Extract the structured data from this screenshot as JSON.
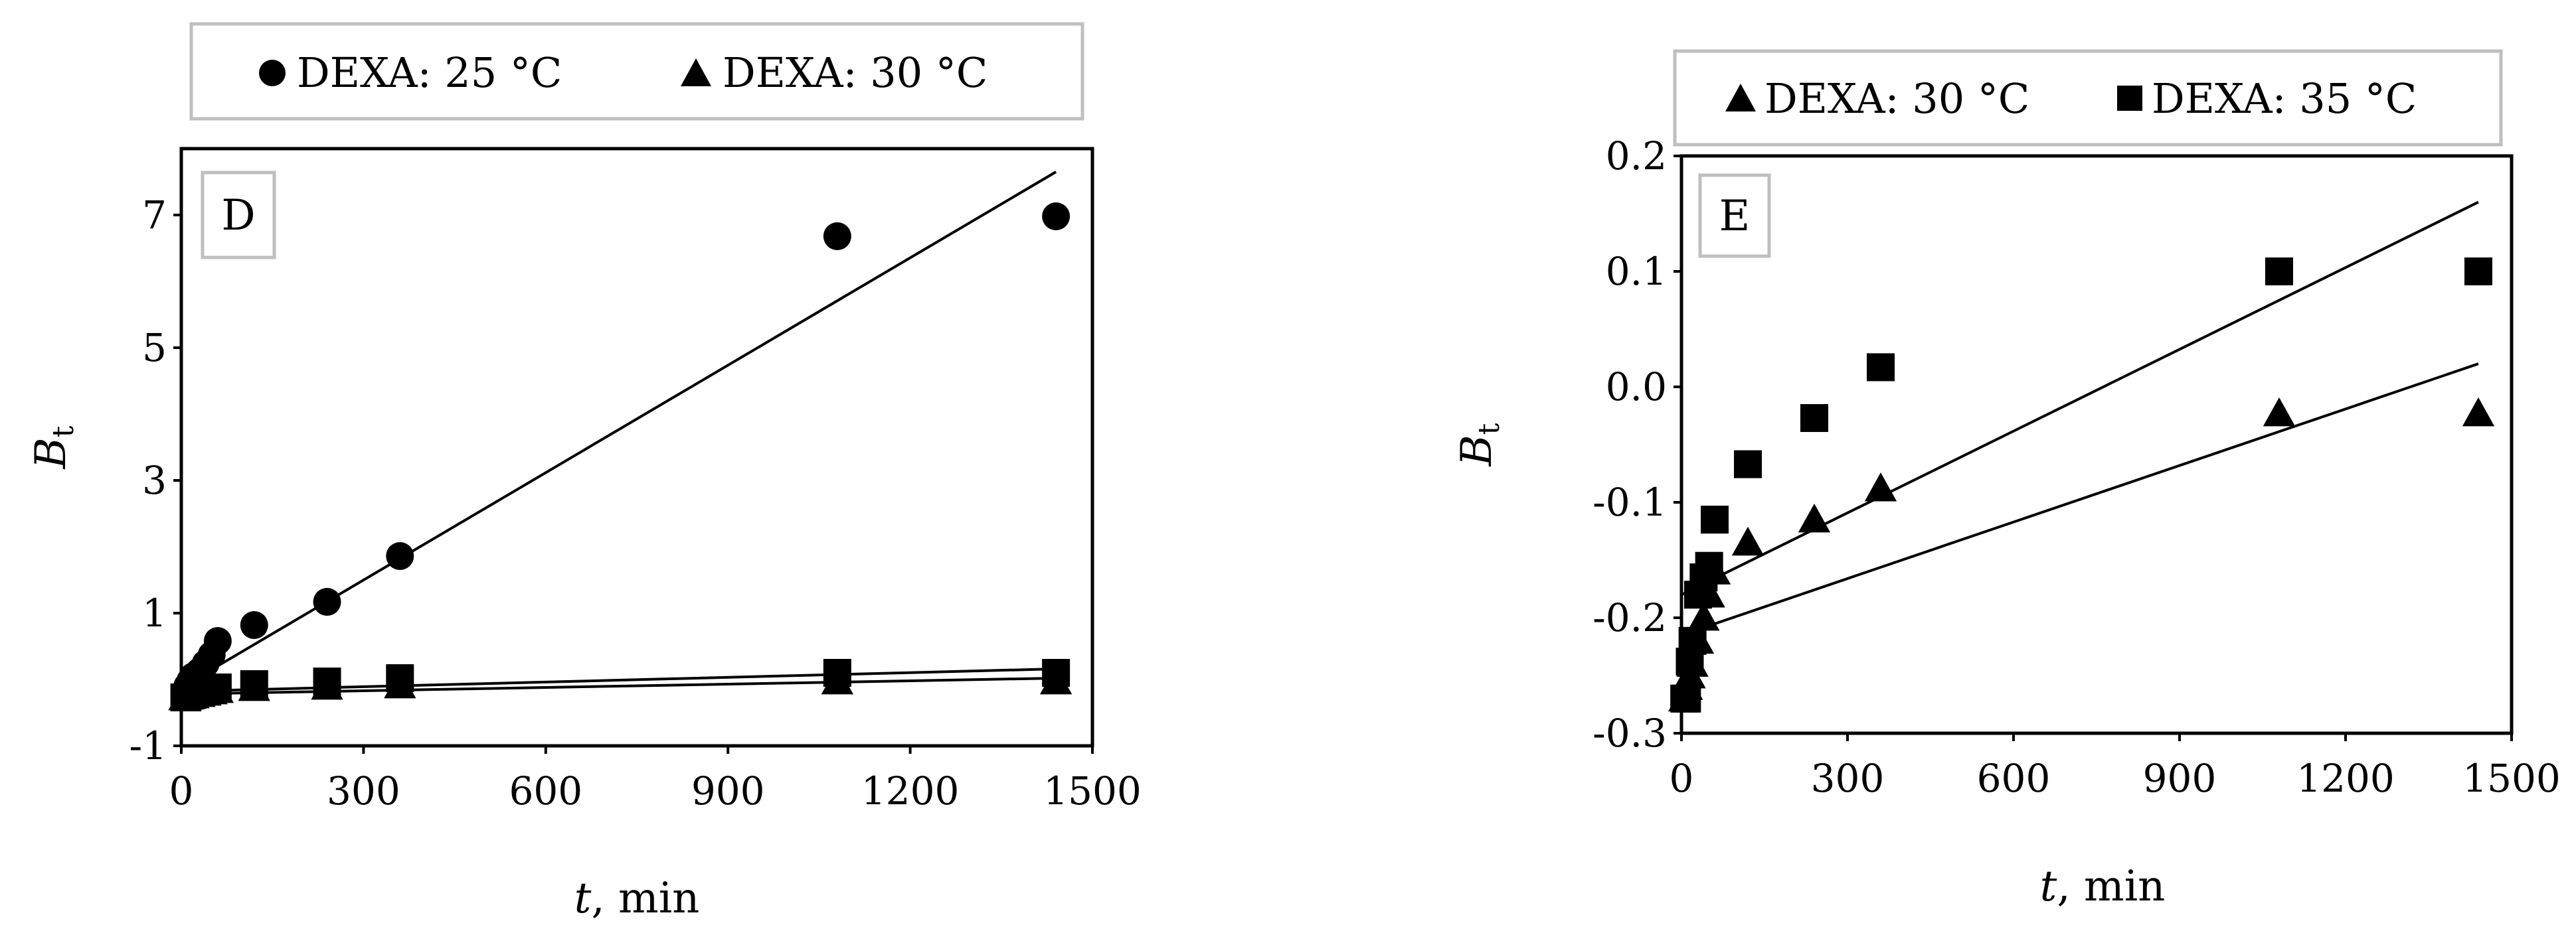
{
  "chart_data": [
    {
      "type": "scatter",
      "panel_label": "D",
      "xlabel_var": "t",
      "xlabel_unit": ", min",
      "ylabel_var": "B",
      "ylabel_sub": "t",
      "xlim": [
        0,
        1500
      ],
      "ylim": [
        -1,
        8
      ],
      "xticks": [
        0,
        300,
        600,
        900,
        1200,
        1500
      ],
      "yticks": [
        -1,
        1,
        3,
        5,
        7
      ],
      "grid": false,
      "legend_position": "top",
      "series": [
        {
          "name": "DEXA: 25 °C",
          "marker": "circle",
          "points": [
            [
              5,
              -0.19
            ],
            [
              10,
              -0.1
            ],
            [
              15,
              -0.02
            ],
            [
              20,
              0.05
            ],
            [
              30,
              0.12
            ],
            [
              40,
              0.24
            ],
            [
              50,
              0.37
            ],
            [
              60,
              0.58
            ],
            [
              120,
              0.82
            ],
            [
              240,
              1.17
            ],
            [
              360,
              1.86
            ],
            [
              1080,
              6.68
            ],
            [
              1440,
              6.98
            ]
          ],
          "trendline": [
            [
              0,
              -0.12
            ],
            [
              1440,
              7.65
            ]
          ]
        },
        {
          "name": "DEXA: 30 °C",
          "marker": "triangle",
          "points": [
            [
              5,
              -0.27
            ],
            [
              10,
              -0.26
            ],
            [
              15,
              -0.25
            ],
            [
              20,
              -0.24
            ],
            [
              30,
              -0.22
            ],
            [
              40,
              -0.2
            ],
            [
              50,
              -0.18
            ],
            [
              60,
              -0.16
            ],
            [
              120,
              -0.13
            ],
            [
              240,
              -0.11
            ],
            [
              360,
              -0.09
            ],
            [
              1080,
              -0.03
            ],
            [
              1440,
              -0.03
            ]
          ],
          "trendline": [
            [
              0,
              -0.22
            ],
            [
              1440,
              0.02
            ]
          ]
        },
        {
          "name": "DEXA: 35 °C",
          "marker": "square",
          "points": [
            [
              5,
              -0.27
            ],
            [
              10,
              -0.27
            ],
            [
              15,
              -0.24
            ],
            [
              20,
              -0.22
            ],
            [
              30,
              -0.18
            ],
            [
              40,
              -0.16
            ],
            [
              50,
              -0.15
            ],
            [
              60,
              -0.12
            ],
            [
              120,
              -0.07
            ],
            [
              240,
              -0.03
            ],
            [
              360,
              0.02
            ],
            [
              1080,
              0.1
            ],
            [
              1440,
              0.1
            ]
          ],
          "trendline": [
            [
              0,
              -0.18
            ],
            [
              1440,
              0.16
            ]
          ]
        }
      ]
    },
    {
      "type": "scatter",
      "panel_label": "E",
      "xlabel_var": "t",
      "xlabel_unit": ", min",
      "ylabel_var": "B",
      "ylabel_sub": "t",
      "xlim": [
        0,
        1500
      ],
      "ylim": [
        -0.3,
        0.2
      ],
      "xticks": [
        0,
        300,
        600,
        900,
        1200,
        1500
      ],
      "yticks": [
        -0.3,
        -0.2,
        -0.1,
        0.0,
        0.1,
        0.2
      ],
      "ytick_labels": [
        "-0.3",
        "-0.2",
        "-0.1",
        "0.0",
        "0.1",
        "0.2"
      ],
      "grid": false,
      "legend_position": "top",
      "series": [
        {
          "name": "DEXA: 30 °C",
          "marker": "triangle",
          "points": [
            [
              5,
              -0.27
            ],
            [
              10,
              -0.26
            ],
            [
              15,
              -0.25
            ],
            [
              20,
              -0.24
            ],
            [
              30,
              -0.22
            ],
            [
              40,
              -0.2
            ],
            [
              50,
              -0.18
            ],
            [
              60,
              -0.16
            ],
            [
              120,
              -0.135
            ],
            [
              240,
              -0.115
            ],
            [
              360,
              -0.088
            ],
            [
              1080,
              -0.023
            ],
            [
              1440,
              -0.023
            ]
          ],
          "trendline": [
            [
              0,
              -0.215
            ],
            [
              1440,
              0.02
            ]
          ]
        },
        {
          "name": "DEXA: 35 °C",
          "marker": "square",
          "points": [
            [
              5,
              -0.27
            ],
            [
              10,
              -0.27
            ],
            [
              15,
              -0.238
            ],
            [
              20,
              -0.22
            ],
            [
              30,
              -0.18
            ],
            [
              40,
              -0.165
            ],
            [
              50,
              -0.155
            ],
            [
              60,
              -0.115
            ],
            [
              120,
              -0.067
            ],
            [
              240,
              -0.027
            ],
            [
              360,
              0.017
            ],
            [
              1080,
              0.1
            ],
            [
              1440,
              0.1
            ]
          ],
          "trendline": [
            [
              0,
              -0.18
            ],
            [
              1440,
              0.16
            ]
          ]
        }
      ]
    }
  ]
}
